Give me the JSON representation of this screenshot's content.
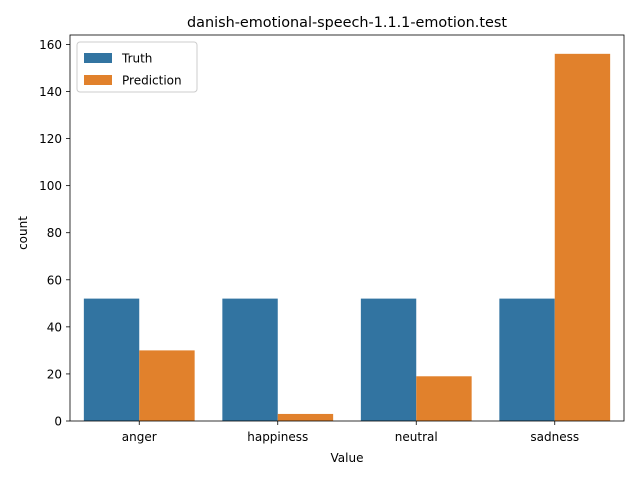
{
  "chart_data": {
    "type": "bar",
    "title": "danish-emotional-speech-1.1.1-emotion.test",
    "xlabel": "Value",
    "ylabel": "count",
    "categories": [
      "anger",
      "happiness",
      "neutral",
      "sadness"
    ],
    "series": [
      {
        "name": "Truth",
        "color": "#3274a1",
        "values": [
          52,
          52,
          52,
          52
        ]
      },
      {
        "name": "Prediction",
        "color": "#e1812c",
        "values": [
          30,
          3,
          19,
          156
        ]
      }
    ],
    "ylim": [
      0,
      164
    ],
    "yticks": [
      0,
      20,
      40,
      60,
      80,
      100,
      120,
      140,
      160
    ],
    "grid": false,
    "legend_position": "top-left"
  }
}
